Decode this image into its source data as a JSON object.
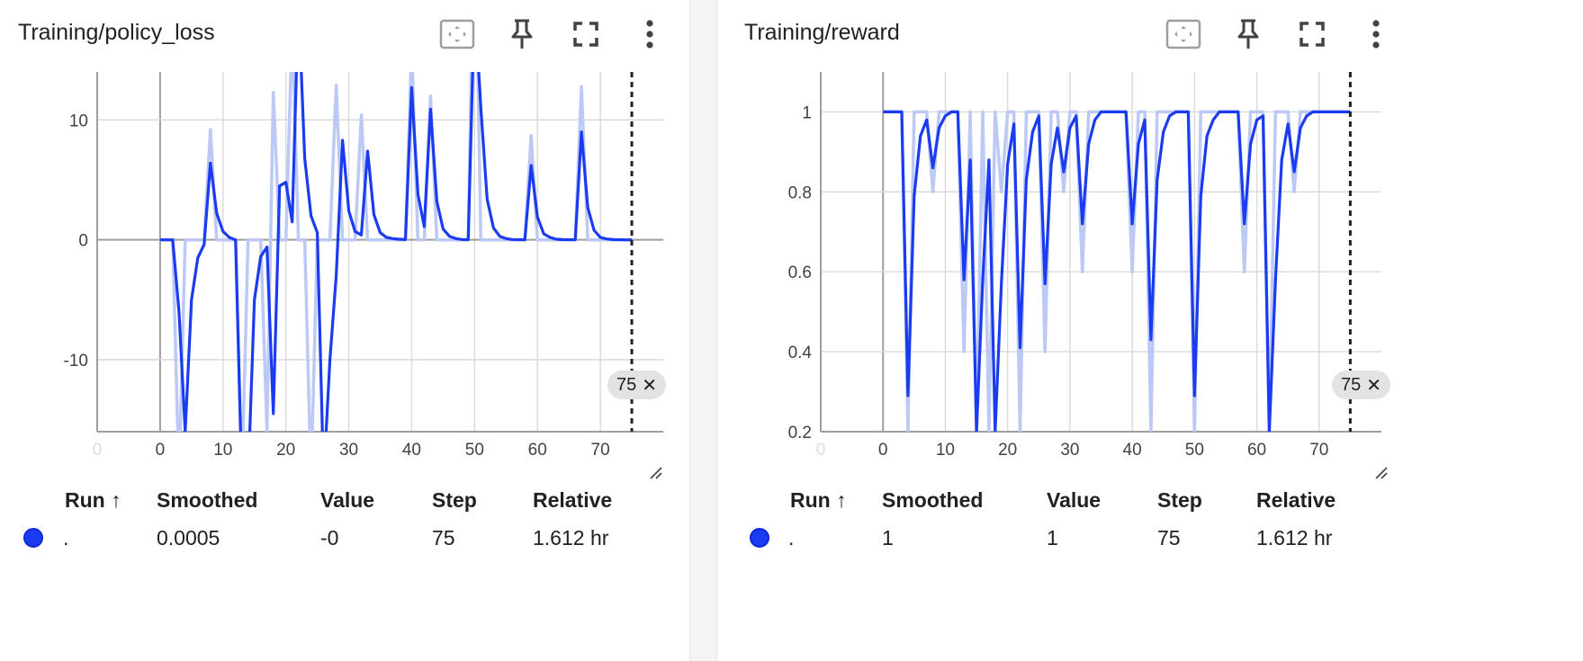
{
  "cards": [
    {
      "title": "Training/policy_loss",
      "x_ticks": [
        "0",
        "0",
        "10",
        "20",
        "30",
        "40",
        "50",
        "60",
        "70"
      ],
      "y_ticks": [
        "10",
        "0",
        "-10"
      ],
      "cursor_badge": "75",
      "table": {
        "headers": [
          "Run ↑",
          "Smoothed",
          "Value",
          "Step",
          "Relative"
        ],
        "row": {
          "run": ".",
          "smoothed": "0.0005",
          "value": "-0",
          "step": "75",
          "relative": "1.612 hr"
        }
      }
    },
    {
      "title": "Training/reward",
      "x_ticks": [
        "0",
        "0",
        "10",
        "20",
        "30",
        "40",
        "50",
        "60",
        "70"
      ],
      "y_ticks": [
        "1",
        "0.8",
        "0.6",
        "0.4",
        "0.2"
      ],
      "cursor_badge": "75",
      "table": {
        "headers": [
          "Run ↑",
          "Smoothed",
          "Value",
          "Step",
          "Relative"
        ],
        "row": {
          "run": ".",
          "smoothed": "1",
          "value": "1",
          "step": "75",
          "relative": "1.612 hr"
        }
      }
    }
  ],
  "icons": {
    "fit": "fit-to-data-icon",
    "pin": "pin-icon",
    "fullscreen": "fullscreen-icon",
    "more": "more-vert-icon",
    "close": "close-icon",
    "resize": "resize-handle-icon"
  },
  "colors": {
    "smoothed_line": "#1a3bf0",
    "raw_line": "#bcc8f6",
    "grid": "#d9d9d9",
    "axis": "#9e9e9e"
  },
  "chart_data": [
    {
      "type": "line",
      "title": "Training/policy_loss",
      "xlim": [
        -10,
        80
      ],
      "ylim": [
        -16,
        14
      ],
      "cursor_step": 75,
      "series": [
        {
          "role": "raw",
          "x": [
            0,
            1,
            2,
            3,
            4,
            5,
            6,
            7,
            8,
            9,
            10,
            11,
            12,
            13,
            14,
            15,
            16,
            17,
            18,
            19,
            20,
            21,
            22,
            23,
            24,
            25,
            26,
            27,
            28,
            29,
            30,
            31,
            32,
            33,
            34,
            35,
            36,
            37,
            38,
            39,
            40,
            41,
            42,
            43,
            44,
            45,
            46,
            47,
            48,
            49,
            50,
            51,
            52,
            53,
            54,
            55,
            56,
            57,
            58,
            59,
            60,
            61,
            62,
            63,
            64,
            65,
            66,
            67,
            68,
            69,
            70,
            71,
            72,
            73,
            74,
            75
          ],
          "y": [
            0,
            0,
            0,
            -20,
            0,
            0,
            0,
            0,
            9.2,
            0,
            0,
            0,
            0,
            -20,
            0,
            0,
            0,
            -16,
            12.3,
            0,
            0,
            18,
            0,
            0,
            -20,
            0,
            0,
            0,
            12.9,
            0,
            0,
            0,
            10.4,
            0,
            0,
            0,
            0,
            0,
            0,
            0,
            16,
            0,
            0,
            12,
            0,
            0,
            0,
            0,
            0,
            0,
            30,
            0,
            0,
            0,
            0,
            0,
            0,
            0,
            0,
            8.7,
            0,
            0,
            0,
            0,
            0,
            0,
            0,
            12.8,
            0,
            0,
            0,
            0,
            0,
            0,
            0,
            0
          ]
        },
        {
          "role": "smoothed",
          "x": [
            0,
            1,
            2,
            3,
            4,
            5,
            6,
            7,
            8,
            9,
            10,
            11,
            12,
            13,
            14,
            15,
            16,
            17,
            18,
            19,
            20,
            21,
            22,
            23,
            24,
            25,
            26,
            27,
            28,
            29,
            30,
            31,
            32,
            33,
            34,
            35,
            36,
            37,
            38,
            39,
            40,
            41,
            42,
            43,
            44,
            45,
            46,
            47,
            48,
            49,
            50,
            51,
            52,
            53,
            54,
            55,
            56,
            57,
            58,
            59,
            60,
            61,
            62,
            63,
            64,
            65,
            66,
            67,
            68,
            69,
            70,
            71,
            72,
            73,
            74,
            75
          ],
          "y": [
            0,
            0,
            0,
            -6,
            -16,
            -5,
            -1.5,
            -0.4,
            6.4,
            2.2,
            0.7,
            0.2,
            0,
            -20,
            -20,
            -5,
            -1.4,
            -0.6,
            -14.5,
            4.5,
            4.8,
            1.5,
            20,
            6.8,
            2,
            0.6,
            -20,
            -10,
            -3,
            8.3,
            2.4,
            0.7,
            0.4,
            7.4,
            2.1,
            0.6,
            0.2,
            0.1,
            0.05,
            0.02,
            12.7,
            3.8,
            1.1,
            10.9,
            3.2,
            0.9,
            0.3,
            0.1,
            0.03,
            0.01,
            20,
            11,
            3.4,
            1.0,
            0.3,
            0.1,
            0.03,
            0.01,
            0,
            6.2,
            1.9,
            0.5,
            0.2,
            0.05,
            0.02,
            0.01,
            0,
            9.0,
            2.7,
            0.8,
            0.2,
            0.07,
            0.02,
            0.01,
            0,
            0
          ]
        }
      ]
    },
    {
      "type": "line",
      "title": "Training/reward",
      "xlim": [
        -10,
        80
      ],
      "ylim": [
        0.2,
        1.1
      ],
      "cursor_step": 75,
      "series": [
        {
          "role": "raw",
          "x": [
            0,
            1,
            2,
            3,
            4,
            5,
            6,
            7,
            8,
            9,
            10,
            11,
            12,
            13,
            14,
            15,
            16,
            17,
            18,
            19,
            20,
            21,
            22,
            23,
            24,
            25,
            26,
            27,
            28,
            29,
            30,
            31,
            32,
            33,
            34,
            35,
            36,
            37,
            38,
            39,
            40,
            41,
            42,
            43,
            44,
            45,
            46,
            47,
            48,
            49,
            50,
            51,
            52,
            53,
            54,
            55,
            56,
            57,
            58,
            59,
            60,
            61,
            62,
            63,
            64,
            65,
            66,
            67,
            68,
            69,
            70,
            71,
            72,
            73,
            74,
            75
          ],
          "y": [
            1,
            1,
            1,
            1,
            0.2,
            1,
            1,
            1,
            0.8,
            1,
            1,
            1,
            1,
            0.4,
            1,
            0.2,
            1,
            0.2,
            1,
            0.8,
            1,
            1,
            0.2,
            1,
            1,
            1,
            0.4,
            1,
            1,
            0.8,
            1,
            1,
            0.6,
            1,
            1,
            1,
            1,
            1,
            1,
            1,
            0.6,
            1,
            1,
            0.2,
            1,
            1,
            1,
            1,
            1,
            1,
            0.2,
            1,
            1,
            1,
            1,
            1,
            1,
            1,
            0.6,
            1,
            1,
            1,
            0.2,
            1,
            1,
            1,
            0.8,
            1,
            1,
            1,
            1,
            1,
            1,
            1,
            1,
            1
          ]
        },
        {
          "role": "smoothed",
          "x": [
            0,
            1,
            2,
            3,
            4,
            5,
            6,
            7,
            8,
            9,
            10,
            11,
            12,
            13,
            14,
            15,
            16,
            17,
            18,
            19,
            20,
            21,
            22,
            23,
            24,
            25,
            26,
            27,
            28,
            29,
            30,
            31,
            32,
            33,
            34,
            35,
            36,
            37,
            38,
            39,
            40,
            41,
            42,
            43,
            44,
            45,
            46,
            47,
            48,
            49,
            50,
            51,
            52,
            53,
            54,
            55,
            56,
            57,
            58,
            59,
            60,
            61,
            62,
            63,
            64,
            65,
            66,
            67,
            68,
            69,
            70,
            71,
            72,
            73,
            74,
            75
          ],
          "y": [
            1,
            1,
            1,
            1,
            0.29,
            0.79,
            0.94,
            0.98,
            0.86,
            0.96,
            0.99,
            1,
            1,
            0.58,
            0.88,
            0.2,
            0.58,
            0.88,
            0.2,
            0.57,
            0.87,
            0.97,
            0.41,
            0.83,
            0.95,
            0.99,
            0.57,
            0.87,
            0.96,
            0.85,
            0.96,
            0.99,
            0.72,
            0.92,
            0.98,
            1,
            1,
            1,
            1,
            1,
            0.72,
            0.92,
            0.98,
            0.43,
            0.83,
            0.95,
            0.99,
            1,
            1,
            1,
            0.29,
            0.79,
            0.94,
            0.98,
            1,
            1,
            1,
            1,
            0.72,
            0.92,
            0.98,
            0.99,
            0.2,
            0.58,
            0.88,
            0.97,
            0.85,
            0.96,
            0.99,
            1,
            1,
            1,
            1,
            1,
            1,
            1
          ]
        }
      ]
    }
  ]
}
